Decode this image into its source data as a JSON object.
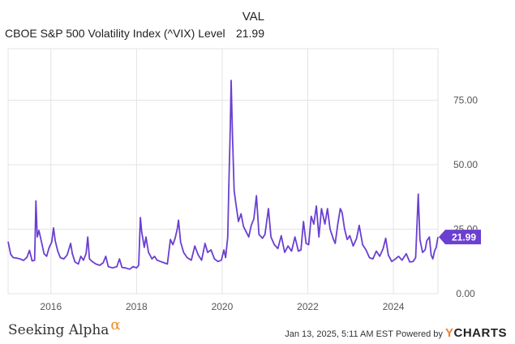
{
  "legend": {
    "value_header": "VAL",
    "series_name": "CBOE S&P 500 Volatility Index (^VIX) Level",
    "series_value": "21.99"
  },
  "footer": {
    "left_brand": "Seeking Alpha",
    "left_brand_symbol": "α",
    "timestamp_text": "Jan 13, 2025, 5:11 AM EST Powered by",
    "right_brand_symbol": "Y",
    "right_brand_text": "CHARTS"
  },
  "colors": {
    "series": "#6a3fd1",
    "grid": "#e3e3e3",
    "axis_text": "#555555",
    "badge_bg": "#6a3fd1",
    "badge_text": "#ffffff"
  },
  "chart_data": {
    "type": "line",
    "x_ticks": [
      "2016",
      "2018",
      "2020",
      "2022",
      "2024"
    ],
    "y_ticks": [
      "0.00",
      "25.00",
      "50.00",
      "75.00"
    ],
    "xlim": [
      2015.0,
      2025.04
    ],
    "ylim": [
      0,
      95
    ],
    "grid": true,
    "current_value_label": "21.99",
    "series": [
      {
        "values": [
          [
            2015.0,
            20.2
          ],
          [
            2015.06,
            15.3
          ],
          [
            2015.12,
            14.0
          ],
          [
            2015.2,
            13.8
          ],
          [
            2015.28,
            13.5
          ],
          [
            2015.36,
            12.9
          ],
          [
            2015.44,
            14.1
          ],
          [
            2015.5,
            16.8
          ],
          [
            2015.56,
            12.7
          ],
          [
            2015.62,
            13.0
          ],
          [
            2015.65,
            36.0
          ],
          [
            2015.68,
            22.0
          ],
          [
            2015.72,
            24.5
          ],
          [
            2015.78,
            20.0
          ],
          [
            2015.84,
            15.5
          ],
          [
            2015.9,
            14.5
          ],
          [
            2015.96,
            18.0
          ],
          [
            2016.02,
            20.0
          ],
          [
            2016.06,
            25.5
          ],
          [
            2016.1,
            20.5
          ],
          [
            2016.16,
            16.5
          ],
          [
            2016.22,
            14.0
          ],
          [
            2016.3,
            13.5
          ],
          [
            2016.38,
            15.0
          ],
          [
            2016.46,
            19.5
          ],
          [
            2016.5,
            15.5
          ],
          [
            2016.56,
            12.3
          ],
          [
            2016.64,
            11.5
          ],
          [
            2016.7,
            14.5
          ],
          [
            2016.76,
            13.0
          ],
          [
            2016.82,
            15.5
          ],
          [
            2016.86,
            22.0
          ],
          [
            2016.9,
            13.5
          ],
          [
            2016.96,
            12.5
          ],
          [
            2017.05,
            11.5
          ],
          [
            2017.14,
            11.0
          ],
          [
            2017.22,
            12.0
          ],
          [
            2017.28,
            14.5
          ],
          [
            2017.34,
            10.5
          ],
          [
            2017.44,
            10.0
          ],
          [
            2017.54,
            10.5
          ],
          [
            2017.6,
            13.5
          ],
          [
            2017.66,
            10.2
          ],
          [
            2017.74,
            10.0
          ],
          [
            2017.84,
            9.5
          ],
          [
            2017.92,
            10.5
          ],
          [
            2018.0,
            10.0
          ],
          [
            2018.05,
            11.0
          ],
          [
            2018.09,
            29.5
          ],
          [
            2018.12,
            24.0
          ],
          [
            2018.18,
            18.0
          ],
          [
            2018.22,
            22.0
          ],
          [
            2018.28,
            16.0
          ],
          [
            2018.36,
            13.5
          ],
          [
            2018.42,
            14.5
          ],
          [
            2018.48,
            13.0
          ],
          [
            2018.56,
            12.5
          ],
          [
            2018.64,
            12.0
          ],
          [
            2018.72,
            11.5
          ],
          [
            2018.79,
            21.0
          ],
          [
            2018.85,
            19.0
          ],
          [
            2018.9,
            21.5
          ],
          [
            2018.95,
            25.0
          ],
          [
            2018.98,
            28.5
          ],
          [
            2019.03,
            20.0
          ],
          [
            2019.1,
            16.0
          ],
          [
            2019.18,
            14.0
          ],
          [
            2019.28,
            13.0
          ],
          [
            2019.36,
            18.5
          ],
          [
            2019.44,
            15.0
          ],
          [
            2019.52,
            13.0
          ],
          [
            2019.6,
            19.5
          ],
          [
            2019.66,
            16.0
          ],
          [
            2019.74,
            17.0
          ],
          [
            2019.82,
            13.5
          ],
          [
            2019.9,
            12.5
          ],
          [
            2019.98,
            13.0
          ],
          [
            2020.04,
            17.0
          ],
          [
            2020.08,
            14.0
          ],
          [
            2020.13,
            22.0
          ],
          [
            2020.16,
            45.0
          ],
          [
            2020.19,
            65.0
          ],
          [
            2020.21,
            82.7
          ],
          [
            2020.24,
            62.0
          ],
          [
            2020.28,
            40.0
          ],
          [
            2020.32,
            35.0
          ],
          [
            2020.38,
            28.0
          ],
          [
            2020.44,
            31.0
          ],
          [
            2020.5,
            26.0
          ],
          [
            2020.56,
            24.0
          ],
          [
            2020.62,
            22.0
          ],
          [
            2020.68,
            26.5
          ],
          [
            2020.74,
            29.0
          ],
          [
            2020.8,
            38.0
          ],
          [
            2020.86,
            23.0
          ],
          [
            2020.94,
            21.5
          ],
          [
            2021.0,
            23.0
          ],
          [
            2021.08,
            33.0
          ],
          [
            2021.14,
            22.0
          ],
          [
            2021.22,
            19.0
          ],
          [
            2021.3,
            17.5
          ],
          [
            2021.38,
            22.5
          ],
          [
            2021.46,
            16.0
          ],
          [
            2021.54,
            18.5
          ],
          [
            2021.62,
            16.5
          ],
          [
            2021.7,
            22.0
          ],
          [
            2021.78,
            16.5
          ],
          [
            2021.84,
            17.0
          ],
          [
            2021.9,
            28.0
          ],
          [
            2021.96,
            19.5
          ],
          [
            2022.02,
            19.0
          ],
          [
            2022.08,
            30.0
          ],
          [
            2022.14,
            27.0
          ],
          [
            2022.2,
            34.0
          ],
          [
            2022.26,
            22.0
          ],
          [
            2022.32,
            33.0
          ],
          [
            2022.4,
            27.0
          ],
          [
            2022.46,
            33.0
          ],
          [
            2022.52,
            25.0
          ],
          [
            2022.6,
            21.0
          ],
          [
            2022.64,
            19.5
          ],
          [
            2022.7,
            27.0
          ],
          [
            2022.76,
            33.0
          ],
          [
            2022.8,
            31.5
          ],
          [
            2022.86,
            25.0
          ],
          [
            2022.92,
            21.0
          ],
          [
            2022.98,
            22.5
          ],
          [
            2023.06,
            18.5
          ],
          [
            2023.14,
            21.5
          ],
          [
            2023.2,
            26.5
          ],
          [
            2023.28,
            19.0
          ],
          [
            2023.36,
            17.0
          ],
          [
            2023.44,
            14.0
          ],
          [
            2023.52,
            13.5
          ],
          [
            2023.6,
            16.5
          ],
          [
            2023.68,
            14.5
          ],
          [
            2023.76,
            17.5
          ],
          [
            2023.82,
            21.5
          ],
          [
            2023.88,
            15.0
          ],
          [
            2023.96,
            12.5
          ],
          [
            2024.05,
            13.5
          ],
          [
            2024.12,
            14.5
          ],
          [
            2024.2,
            13.0
          ],
          [
            2024.3,
            15.5
          ],
          [
            2024.38,
            12.3
          ],
          [
            2024.46,
            12.5
          ],
          [
            2024.52,
            14.0
          ],
          [
            2024.58,
            38.6
          ],
          [
            2024.62,
            21.0
          ],
          [
            2024.68,
            16.0
          ],
          [
            2024.74,
            17.0
          ],
          [
            2024.78,
            20.5
          ],
          [
            2024.84,
            22.0
          ],
          [
            2024.88,
            15.0
          ],
          [
            2024.92,
            13.5
          ],
          [
            2024.96,
            16.5
          ],
          [
            2025.0,
            18.0
          ],
          [
            2025.04,
            21.99
          ]
        ]
      }
    ]
  }
}
